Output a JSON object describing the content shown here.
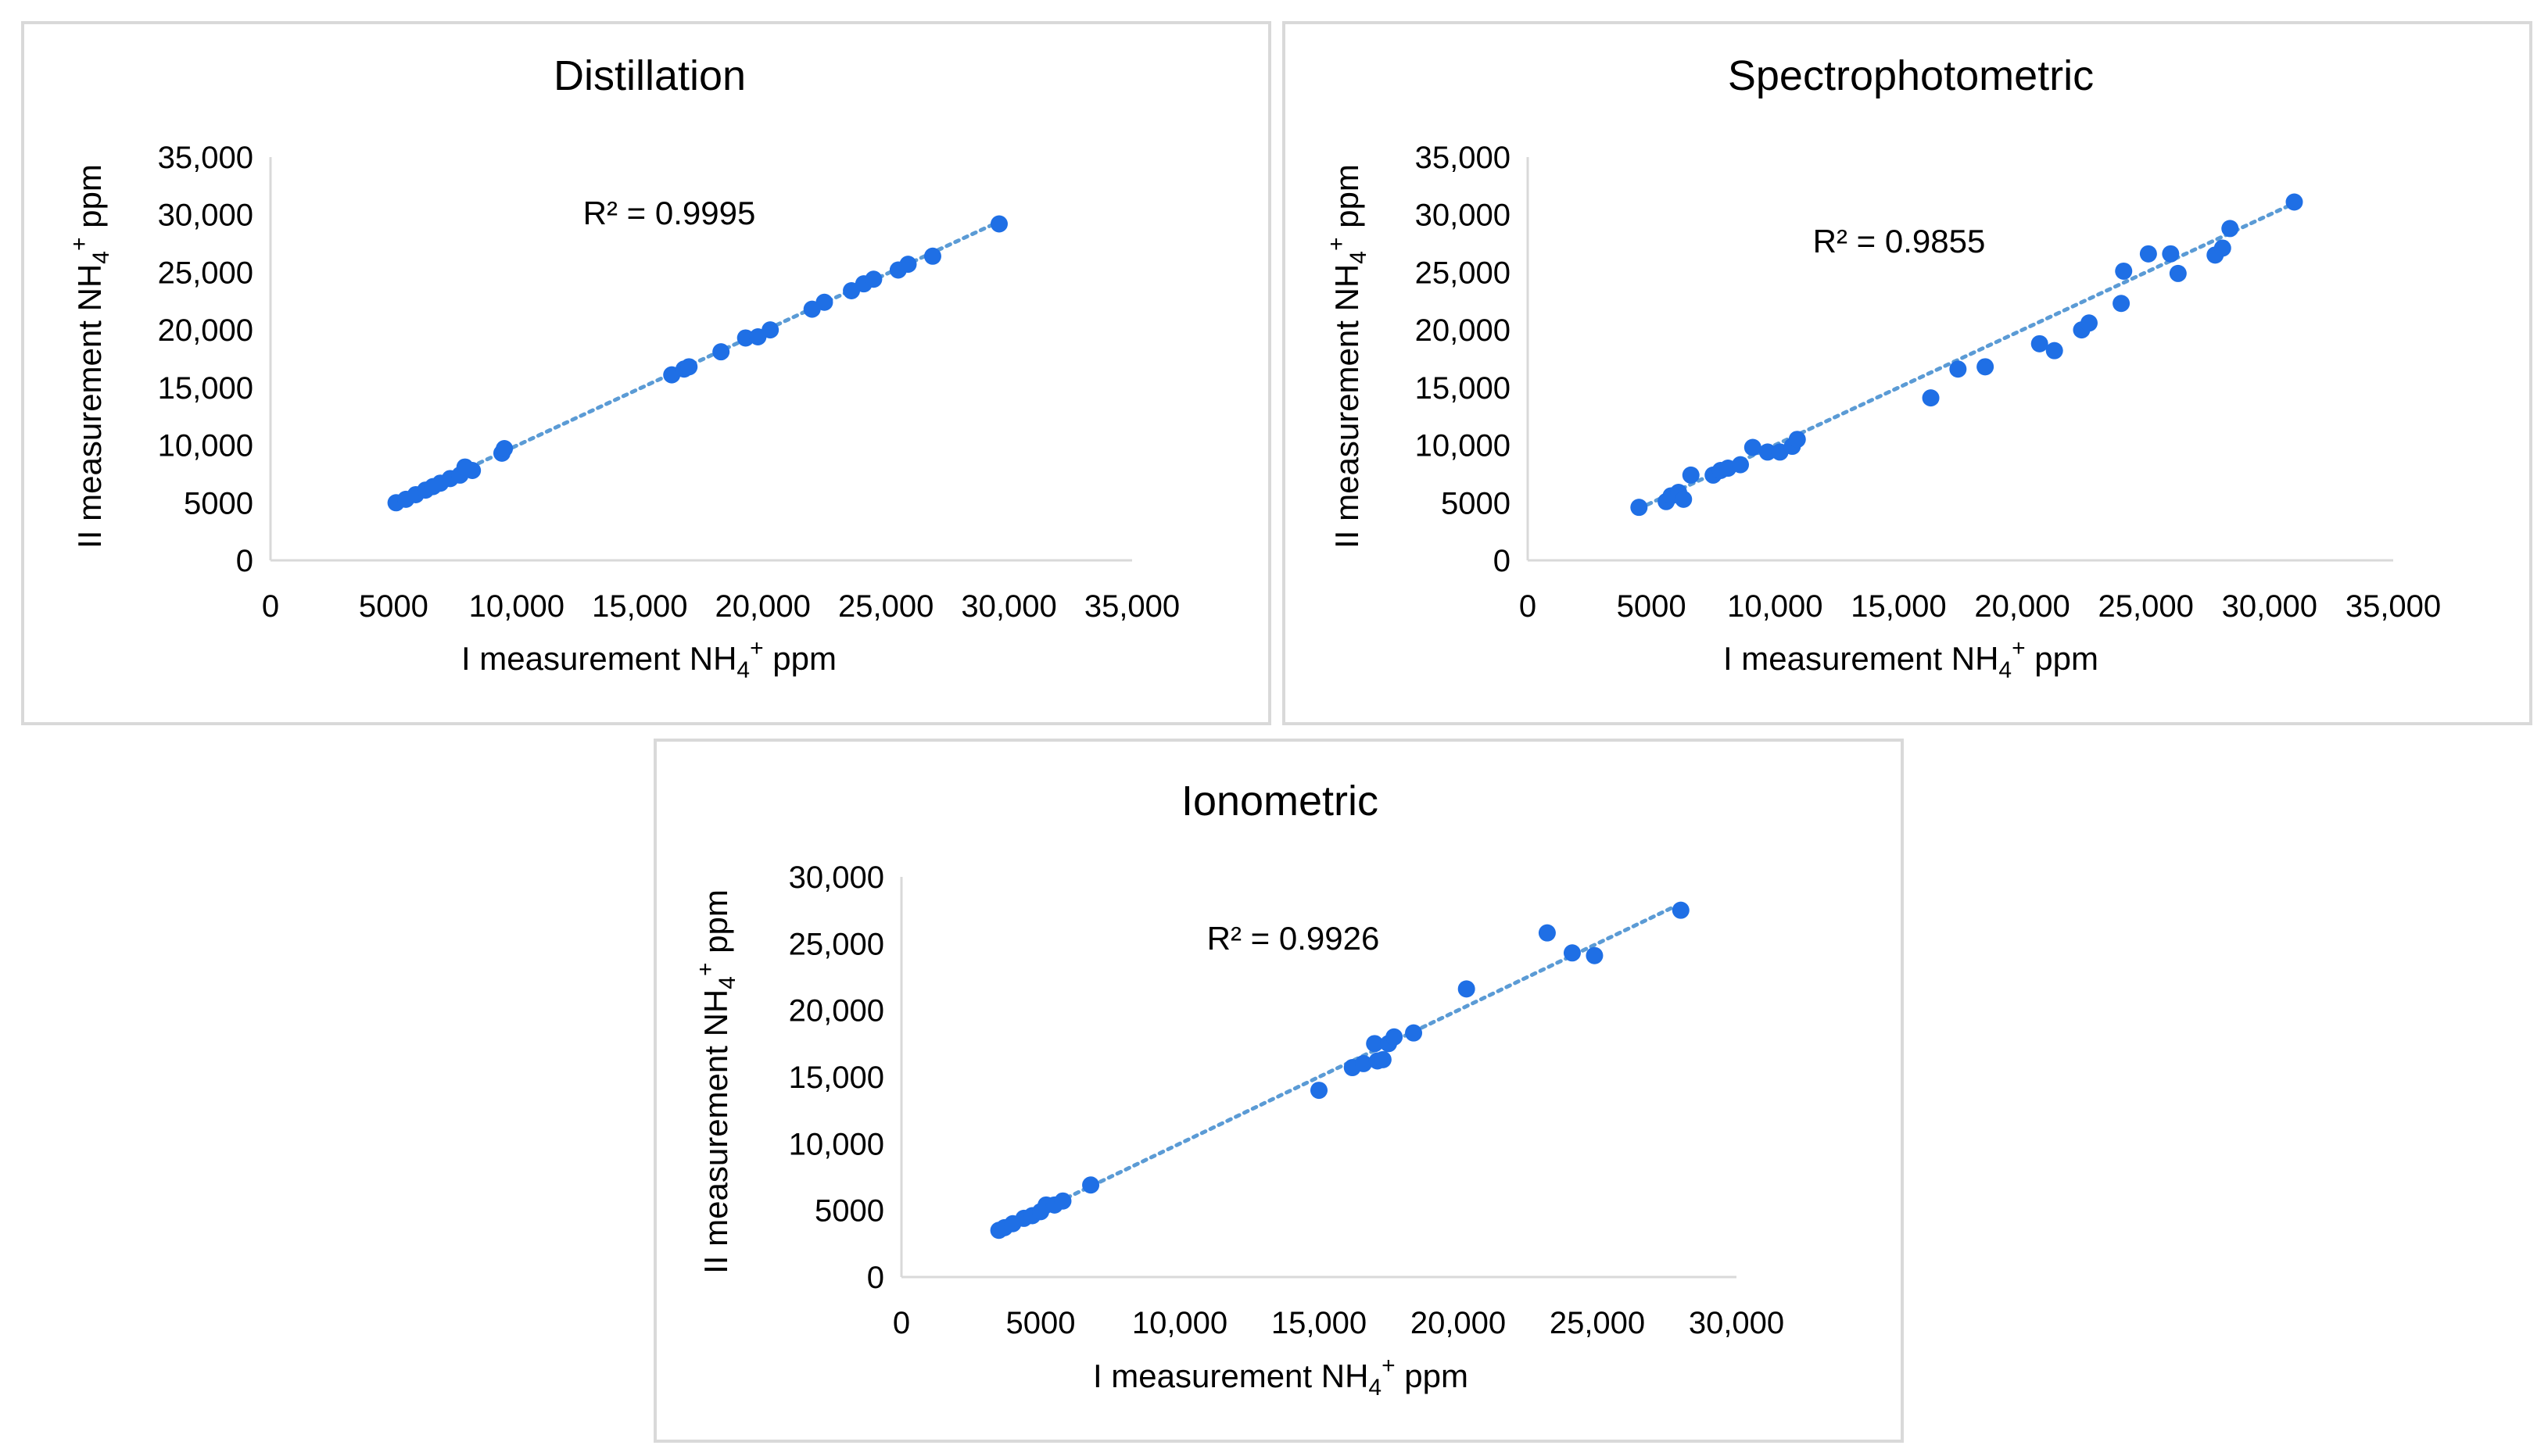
{
  "chart_data": [
    {
      "type": "scatter",
      "title": "Distillation",
      "xlabel": {
        "prefix": "I measurement NH",
        "sub": "4",
        "sup": "+",
        "suffix": " ppm"
      },
      "ylabel": {
        "prefix": "II measurement NH",
        "sub": "4",
        "sup": "+",
        "suffix": " ppm"
      },
      "xlim": [
        0,
        35000
      ],
      "ylim": [
        0,
        35000
      ],
      "xticks": [
        0,
        5000,
        10000,
        15000,
        20000,
        25000,
        30000,
        35000
      ],
      "yticks": [
        0,
        5000,
        10000,
        15000,
        20000,
        25000,
        30000,
        35000
      ],
      "xtick_labels": [
        "0",
        "5000",
        "10,000",
        "15,000",
        "20,000",
        "25,000",
        "30,000",
        "35,000"
      ],
      "ytick_labels": [
        "0",
        "5000",
        "10,000",
        "15,000",
        "20,000",
        "25,000",
        "30,000",
        "35,000"
      ],
      "r_squared": "R² = 0.9995",
      "trendline": {
        "style": "dotted",
        "from": [
          5000,
          5000
        ],
        "to": [
          29500,
          29300
        ]
      },
      "marker_color": "#1f6fe5",
      "trendline_color": "#5b9bd5",
      "series": [
        {
          "name": "Distillation",
          "x": [
            5100,
            5500,
            5900,
            6300,
            6600,
            6900,
            7300,
            7700,
            7900,
            8200,
            9400,
            9500,
            16300,
            16800,
            17000,
            18300,
            19300,
            19800,
            20300,
            22000,
            22500,
            23600,
            24100,
            24500,
            25500,
            25900,
            26900,
            29600
          ],
          "y": [
            5000,
            5300,
            5700,
            6100,
            6400,
            6700,
            7100,
            7400,
            8100,
            7800,
            9300,
            9700,
            16100,
            16600,
            16800,
            18100,
            19300,
            19400,
            20000,
            21800,
            22400,
            23400,
            24000,
            24400,
            25200,
            25700,
            26400,
            29200
          ]
        }
      ]
    },
    {
      "type": "scatter",
      "title": "Spectrophotometric",
      "xlabel": {
        "prefix": "I measurement NH",
        "sub": "4",
        "sup": "+",
        "suffix": " ppm"
      },
      "ylabel": {
        "prefix": "II measurement NH",
        "sub": "4",
        "sup": "+",
        "suffix": " ppm"
      },
      "xlim": [
        0,
        35000
      ],
      "ylim": [
        0,
        35000
      ],
      "xticks": [
        0,
        5000,
        10000,
        15000,
        20000,
        25000,
        30000,
        35000
      ],
      "yticks": [
        0,
        5000,
        10000,
        15000,
        20000,
        25000,
        30000,
        35000
      ],
      "xtick_labels": [
        "0",
        "5000",
        "10,000",
        "15,000",
        "20,000",
        "25,000",
        "30,000",
        "35,000"
      ],
      "ytick_labels": [
        "0",
        "5000",
        "10,000",
        "15,000",
        "20,000",
        "25,000",
        "30,000",
        "35,000"
      ],
      "r_squared": "R² = 0.9855",
      "trendline": {
        "style": "dotted",
        "from": [
          4500,
          4500
        ],
        "to": [
          31000,
          31000
        ]
      },
      "marker_color": "#1f6fe5",
      "trendline_color": "#5b9bd5",
      "series": [
        {
          "name": "Spectrophotometric",
          "x": [
            4500,
            5600,
            5800,
            6100,
            6300,
            6600,
            7500,
            7800,
            8100,
            8600,
            9100,
            9700,
            10200,
            10700,
            10900,
            16300,
            17400,
            18500,
            20700,
            21300,
            22400,
            22700,
            24000,
            24100,
            25100,
            26000,
            26300,
            27800,
            28100,
            28400,
            31000
          ],
          "y": [
            4600,
            5100,
            5600,
            5900,
            5300,
            7400,
            7400,
            7800,
            8000,
            8300,
            9800,
            9400,
            9400,
            9900,
            10500,
            14100,
            16600,
            16800,
            18800,
            18200,
            20000,
            20600,
            22300,
            25100,
            26600,
            26600,
            24900,
            26500,
            27100,
            28800,
            31100
          ]
        }
      ]
    },
    {
      "type": "scatter",
      "title": "Ionometric",
      "xlabel": {
        "prefix": "I measurement NH",
        "sub": "4",
        "sup": "+",
        "suffix": " ppm"
      },
      "ylabel": {
        "prefix": "II measurement NH",
        "sub": "4",
        "sup": "+",
        "suffix": " ppm"
      },
      "xlim": [
        0,
        30000
      ],
      "ylim": [
        0,
        30000
      ],
      "xticks": [
        0,
        5000,
        10000,
        15000,
        20000,
        25000,
        30000
      ],
      "yticks": [
        0,
        5000,
        10000,
        15000,
        20000,
        25000,
        30000
      ],
      "xtick_labels": [
        "0",
        "5000",
        "10,000",
        "15,000",
        "20,000",
        "25,000",
        "30,000"
      ],
      "ytick_labels": [
        "0",
        "5000",
        "10,000",
        "15,000",
        "20,000",
        "25,000",
        "30,000"
      ],
      "r_squared": "R² = 0.9926",
      "trendline": {
        "style": "dotted",
        "from": [
          3500,
          3500
        ],
        "to": [
          28000,
          28000
        ]
      },
      "marker_color": "#1f6fe5",
      "trendline_color": "#5b9bd5",
      "series": [
        {
          "name": "Ionometric",
          "x": [
            3500,
            3700,
            4000,
            4400,
            4700,
            5000,
            5200,
            5500,
            5800,
            6800,
            15000,
            16200,
            16600,
            17000,
            17100,
            17300,
            17500,
            17700,
            18400,
            20300,
            23200,
            24100,
            24900,
            28000
          ],
          "y": [
            3500,
            3700,
            4000,
            4400,
            4600,
            4900,
            5400,
            5400,
            5700,
            6900,
            14000,
            15700,
            16000,
            17500,
            16200,
            16300,
            17500,
            18000,
            18300,
            21600,
            25800,
            24300,
            24100,
            27500
          ]
        }
      ]
    }
  ]
}
